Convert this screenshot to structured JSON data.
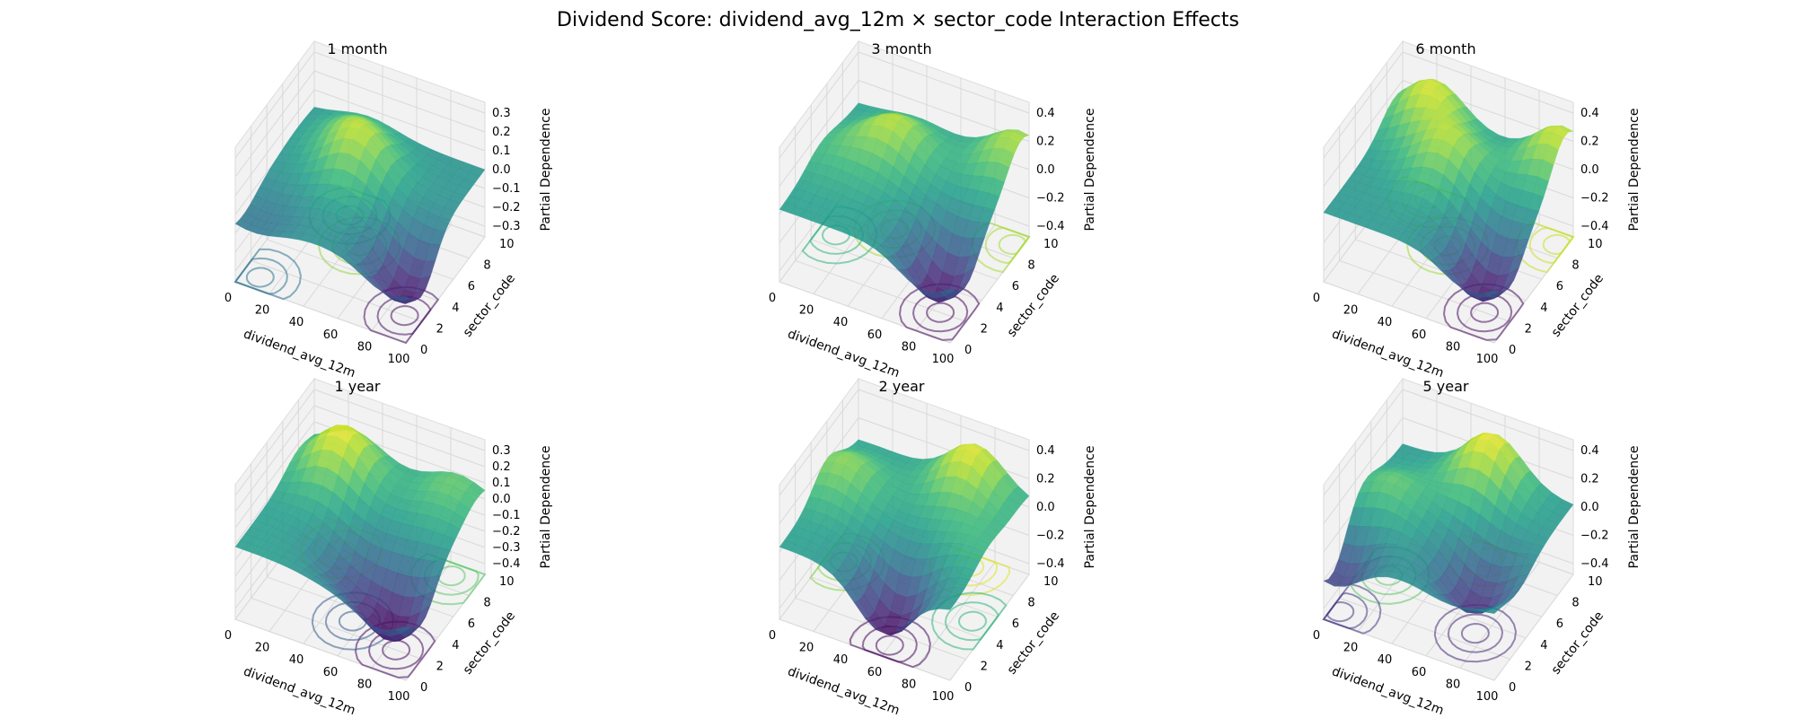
{
  "figure_title": "Dividend Score: dividend_avg_12m × sector_code Interaction Effects",
  "chart_data": [
    {
      "type": "surface3d",
      "title": "1 month",
      "xlabel": "dividend_avg_12m",
      "ylabel": "sector_code",
      "zlabel": "Partial Dependence",
      "xlim": [
        0,
        100
      ],
      "ylim": [
        0,
        10
      ],
      "zlim": [
        -0.33,
        0.33
      ],
      "xticks": [
        "0",
        "20",
        "40",
        "60",
        "80",
        "100"
      ],
      "yticks": [
        "0",
        "2",
        "4",
        "6",
        "8",
        "10"
      ],
      "zticks": [
        "−0.3",
        "−0.2",
        "−0.1",
        "0.0",
        "0.1",
        "0.2",
        "0.3"
      ],
      "colormap": "viridis",
      "contour_projection": true,
      "peaks": [
        {
          "x": 45,
          "y": 6,
          "z": 0.22
        },
        {
          "x": 30,
          "y": 8,
          "z": 0.12
        },
        {
          "x": 90,
          "y": 2,
          "z": -0.3
        },
        {
          "x": 10,
          "y": 1,
          "z": -0.08
        }
      ]
    },
    {
      "type": "surface3d",
      "title": "3 month",
      "xlabel": "dividend_avg_12m",
      "ylabel": "sector_code",
      "zlabel": "Partial Dependence",
      "xlim": [
        0,
        100
      ],
      "ylim": [
        0,
        10
      ],
      "zlim": [
        -0.5,
        0.42
      ],
      "xticks": [
        "0",
        "20",
        "40",
        "60",
        "80",
        "100"
      ],
      "yticks": [
        "0",
        "2",
        "4",
        "6",
        "8",
        "10"
      ],
      "zticks": [
        "−0.4",
        "−0.2",
        "0.0",
        "0.2",
        "0.4"
      ],
      "colormap": "viridis",
      "contour_projection": true,
      "peaks": [
        {
          "x": 35,
          "y": 7,
          "z": 0.3
        },
        {
          "x": 95,
          "y": 9,
          "z": 0.3
        },
        {
          "x": 85,
          "y": 2,
          "z": -0.48
        },
        {
          "x": 10,
          "y": 5,
          "z": 0.1
        }
      ]
    },
    {
      "type": "surface3d",
      "title": "6 month",
      "xlabel": "dividend_avg_12m",
      "ylabel": "sector_code",
      "zlabel": "Partial Dependence",
      "xlim": [
        0,
        100
      ],
      "ylim": [
        0,
        10
      ],
      "zlim": [
        -0.45,
        0.42
      ],
      "xticks": [
        "0",
        "20",
        "40",
        "60",
        "80",
        "100"
      ],
      "yticks": [
        "0",
        "2",
        "4",
        "6",
        "8",
        "10"
      ],
      "zticks": [
        "−0.4",
        "−0.2",
        "0.0",
        "0.2",
        "0.4"
      ],
      "colormap": "viridis",
      "contour_projection": true,
      "peaks": [
        {
          "x": 20,
          "y": 9,
          "z": 0.35
        },
        {
          "x": 45,
          "y": 6,
          "z": 0.3
        },
        {
          "x": 95,
          "y": 9,
          "z": 0.35
        },
        {
          "x": 85,
          "y": 2,
          "z": -0.42
        }
      ]
    },
    {
      "type": "surface3d",
      "title": "1 year",
      "xlabel": "dividend_avg_12m",
      "ylabel": "sector_code",
      "zlabel": "Partial Dependence",
      "xlim": [
        0,
        100
      ],
      "ylim": [
        0,
        10
      ],
      "zlim": [
        -0.42,
        0.35
      ],
      "xticks": [
        "0",
        "20",
        "40",
        "60",
        "80",
        "100"
      ],
      "yticks": [
        "0",
        "2",
        "4",
        "6",
        "8",
        "10"
      ],
      "zticks": [
        "−0.4",
        "−0.3",
        "−0.2",
        "−0.1",
        "0.0",
        "0.1",
        "0.2",
        "0.3"
      ],
      "colormap": "viridis",
      "contour_projection": true,
      "peaks": [
        {
          "x": 25,
          "y": 8,
          "z": 0.33
        },
        {
          "x": 85,
          "y": 9,
          "z": 0.15
        },
        {
          "x": 85,
          "y": 2,
          "z": -0.4
        },
        {
          "x": 55,
          "y": 3,
          "z": -0.2
        }
      ]
    },
    {
      "type": "surface3d",
      "title": "2 year",
      "xlabel": "dividend_avg_12m",
      "ylabel": "sector_code",
      "zlabel": "Partial Dependence",
      "xlim": [
        0,
        100
      ],
      "ylim": [
        0,
        10
      ],
      "zlim": [
        -0.5,
        0.42
      ],
      "xticks": [
        "0",
        "20",
        "40",
        "60",
        "80",
        "100"
      ],
      "yticks": [
        "0",
        "2",
        "4",
        "6",
        "8",
        "10"
      ],
      "zticks": [
        "−0.4",
        "−0.2",
        "0.0",
        "0.2",
        "0.4"
      ],
      "colormap": "viridis",
      "contour_projection": true,
      "peaks": [
        {
          "x": 70,
          "y": 9,
          "z": 0.38
        },
        {
          "x": 10,
          "y": 6,
          "z": 0.25
        },
        {
          "x": 60,
          "y": 1,
          "z": -0.48
        },
        {
          "x": 90,
          "y": 5,
          "z": 0.1
        }
      ]
    },
    {
      "type": "surface3d",
      "title": "5 year",
      "xlabel": "dividend_avg_12m",
      "ylabel": "sector_code",
      "zlabel": "Partial Dependence",
      "xlim": [
        0,
        100
      ],
      "ylim": [
        0,
        10
      ],
      "zlim": [
        -0.45,
        0.42
      ],
      "xticks": [
        "0",
        "20",
        "40",
        "60",
        "80",
        "100"
      ],
      "yticks": [
        "0",
        "2",
        "4",
        "6",
        "8",
        "10"
      ],
      "zticks": [
        "−0.4",
        "−0.2",
        "0.0",
        "0.2",
        "0.4"
      ],
      "colormap": "viridis",
      "contour_projection": true,
      "peaks": [
        {
          "x": 55,
          "y": 9,
          "z": 0.4
        },
        {
          "x": 15,
          "y": 5,
          "z": 0.2
        },
        {
          "x": 75,
          "y": 3,
          "z": -0.35
        },
        {
          "x": 5,
          "y": 1,
          "z": -0.3
        }
      ]
    }
  ]
}
